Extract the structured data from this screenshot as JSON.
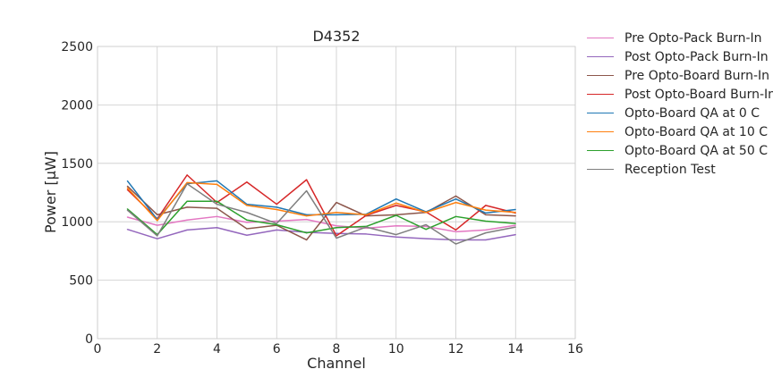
{
  "chart_data": {
    "type": "line",
    "title": "D4352",
    "xlabel": "Channel",
    "ylabel": "Power [μW]",
    "xlim": [
      0,
      16
    ],
    "ylim": [
      0,
      2500
    ],
    "xticks": [
      0,
      2,
      4,
      6,
      8,
      10,
      12,
      14,
      16
    ],
    "yticks": [
      0,
      500,
      1000,
      1500,
      2000,
      2500
    ],
    "grid": true,
    "legend_position": "outside-right",
    "x": [
      1,
      2,
      3,
      4,
      5,
      6,
      7,
      8,
      9,
      10,
      11,
      12,
      13,
      14
    ],
    "series": [
      {
        "name": "Pre Opto-Pack Burn-In",
        "color": "#e377c2",
        "values": [
          1040,
          970,
          1015,
          1045,
          995,
          1005,
          1020,
          965,
          945,
          965,
          960,
          915,
          930,
          970
        ]
      },
      {
        "name": "Post Opto-Pack Burn-In",
        "color": "#9467bd",
        "values": [
          935,
          855,
          930,
          950,
          885,
          930,
          910,
          900,
          895,
          870,
          855,
          845,
          845,
          890
        ]
      },
      {
        "name": "Pre Opto-Board Burn-In",
        "color": "#8c564b",
        "values": [
          1305,
          1060,
          1125,
          1115,
          940,
          970,
          845,
          1165,
          1050,
          1060,
          1080,
          1220,
          1060,
          1050
        ]
      },
      {
        "name": "Post Opto-Board Burn-In",
        "color": "#d62728",
        "values": [
          1275,
          1025,
          1400,
          1165,
          1340,
          1150,
          1360,
          880,
          1055,
          1140,
          1085,
          930,
          1140,
          1075
        ]
      },
      {
        "name": "Opto-Board QA at 0 C",
        "color": "#1f77b4",
        "values": [
          1350,
          1020,
          1325,
          1350,
          1150,
          1125,
          1060,
          1060,
          1065,
          1195,
          1085,
          1195,
          1075,
          1105
        ]
      },
      {
        "name": "Opto-Board QA at 10 C",
        "color": "#ff7f0e",
        "values": [
          1290,
          1010,
          1335,
          1320,
          1140,
          1105,
          1050,
          1080,
          1060,
          1160,
          1080,
          1165,
          1100,
          1080
        ]
      },
      {
        "name": "Opto-Board QA at 50 C",
        "color": "#2ca02c",
        "values": [
          1110,
          890,
          1175,
          1175,
          1015,
          975,
          905,
          950,
          960,
          1055,
          935,
          1045,
          1005,
          985
        ]
      },
      {
        "name": "Reception Test",
        "color": "#7f7f7f",
        "values": [
          1100,
          880,
          1325,
          1150,
          1080,
          985,
          1265,
          860,
          955,
          890,
          975,
          810,
          905,
          955
        ]
      }
    ]
  }
}
